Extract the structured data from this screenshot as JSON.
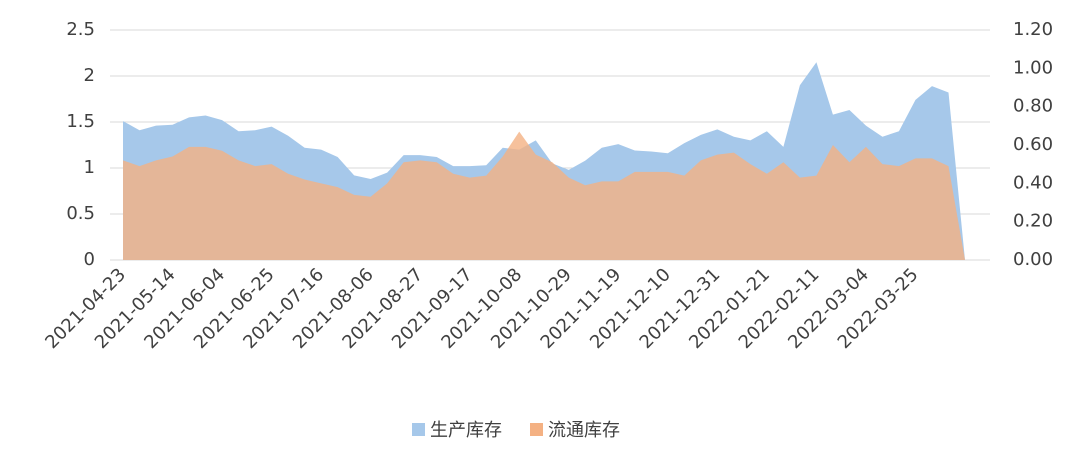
{
  "chart_data": {
    "type": "area",
    "categories": [
      "2021-04-23",
      null,
      null,
      "2021-05-14",
      null,
      null,
      "2021-06-04",
      null,
      null,
      "2021-06-25",
      null,
      null,
      "2021-07-16",
      null,
      null,
      "2021-08-06",
      null,
      null,
      "2021-08-27",
      null,
      null,
      "2021-09-17",
      null,
      null,
      "2021-10-08",
      null,
      null,
      "2021-10-29",
      null,
      null,
      "2021-11-19",
      null,
      null,
      "2021-12-10",
      null,
      null,
      "2021-12-31",
      null,
      null,
      "2022-01-21",
      null,
      null,
      "2022-02-11",
      null,
      null,
      "2022-03-04",
      null,
      null,
      "2022-03-25",
      null,
      null,
      null
    ],
    "series": [
      {
        "name": "生产库存",
        "color": "#a6c8ea",
        "axis": "y",
        "values": [
          1.51,
          1.41,
          1.46,
          1.47,
          1.55,
          1.57,
          1.52,
          1.4,
          1.41,
          1.45,
          1.35,
          1.22,
          1.2,
          1.12,
          0.92,
          0.88,
          0.95,
          1.14,
          1.14,
          1.12,
          1.02,
          1.02,
          1.03,
          1.22,
          1.2,
          1.3,
          1.05,
          0.98,
          1.08,
          1.22,
          1.26,
          1.19,
          1.18,
          1.16,
          1.27,
          1.36,
          1.42,
          1.34,
          1.3,
          1.4,
          1.23,
          1.9,
          2.15,
          1.58,
          1.63,
          1.46,
          1.34,
          1.4,
          1.74,
          1.89,
          1.82,
          0
        ]
      },
      {
        "name": "流通库存",
        "color": "#f4b183",
        "axis": "y2",
        "values": [
          0.52,
          0.49,
          0.52,
          0.54,
          0.59,
          0.59,
          0.57,
          0.52,
          0.49,
          0.5,
          0.45,
          0.42,
          0.4,
          0.38,
          0.34,
          0.33,
          0.4,
          0.51,
          0.52,
          0.51,
          0.45,
          0.43,
          0.44,
          0.54,
          0.67,
          0.55,
          0.51,
          0.43,
          0.39,
          0.41,
          0.41,
          0.46,
          0.46,
          0.46,
          0.44,
          0.52,
          0.55,
          0.56,
          0.5,
          0.45,
          0.51,
          0.43,
          0.44,
          0.6,
          0.51,
          0.59,
          0.5,
          0.49,
          0.53,
          0.53,
          0.49,
          0
        ]
      }
    ],
    "ylim": [
      0,
      2.5
    ],
    "yticks": [
      0,
      0.5,
      1,
      1.5,
      2,
      2.5
    ],
    "y2lim": [
      0,
      1.2
    ],
    "y2ticks": [
      {
        "value": 0,
        "label": "0.00"
      },
      {
        "value": 0.2,
        "label": "0.20"
      },
      {
        "value": 0.4,
        "label": "0.40"
      },
      {
        "value": 0.6,
        "label": "0.60"
      },
      {
        "value": 0.8,
        "label": "0.80"
      },
      {
        "value": 1.0,
        "label": "1.00"
      },
      {
        "value": 1.2,
        "label": "1.20"
      }
    ],
    "grid": true,
    "legend": "bottom"
  }
}
